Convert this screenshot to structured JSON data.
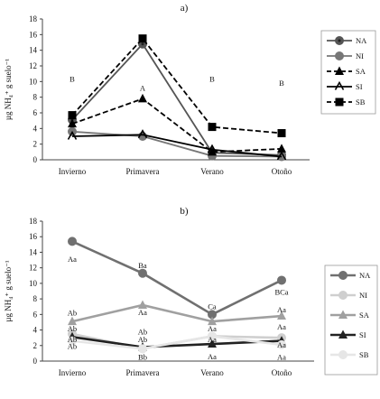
{
  "chart_data": [
    {
      "type": "line",
      "panel_label": "a)",
      "ylabel": "µg NH₄⁺ g suelo⁻¹",
      "categories": [
        "Invierno",
        "Primavera",
        "Verano",
        "Otoño"
      ],
      "ylim": [
        0,
        18
      ],
      "yticks": [
        0,
        2,
        4,
        6,
        8,
        10,
        12,
        14,
        16,
        18
      ],
      "grid": false,
      "legend_position": "right",
      "series": [
        {
          "name": "NA",
          "values": [
            5.1,
            14.8,
            0.9,
            0.6
          ],
          "color": "#555555",
          "dash": "solid",
          "marker": "circle-dot"
        },
        {
          "name": "NI",
          "values": [
            3.6,
            3.0,
            0.5,
            0.4
          ],
          "color": "#777777",
          "dash": "solid",
          "marker": "circle"
        },
        {
          "name": "SA",
          "values": [
            4.6,
            7.8,
            1.0,
            1.4
          ],
          "color": "#000000",
          "dash": "dashed",
          "marker": "triangle"
        },
        {
          "name": "SI",
          "values": [
            3.0,
            3.2,
            1.3,
            0.4
          ],
          "color": "#000000",
          "dash": "solid",
          "marker": "triangle-open"
        },
        {
          "name": "SB",
          "values": [
            5.7,
            15.5,
            4.2,
            3.4
          ],
          "color": "#000000",
          "dash": "dashed",
          "marker": "square"
        }
      ],
      "annotations": [
        {
          "text": "B",
          "x": "Invierno",
          "y": 10.3
        },
        {
          "text": "A",
          "x": "Primavera",
          "y": 9.2
        },
        {
          "text": "B",
          "x": "Verano",
          "y": 10.3
        },
        {
          "text": "B",
          "x": "Otoño",
          "y": 9.8
        }
      ]
    },
    {
      "type": "line",
      "panel_label": "b)",
      "ylabel": "µg NH₄⁺ g suelo⁻¹",
      "categories": [
        "Invierno",
        "Primavera",
        "Verano",
        "Otoño"
      ],
      "ylim": [
        0,
        18
      ],
      "yticks": [
        0,
        2,
        4,
        6,
        8,
        10,
        12,
        14,
        16,
        18
      ],
      "grid": false,
      "legend_position": "right",
      "series": [
        {
          "name": "NA",
          "values": [
            15.4,
            11.3,
            6.0,
            10.4
          ],
          "color": "#707070",
          "dash": "solid",
          "marker": "circle"
        },
        {
          "name": "NI",
          "values": [
            3.5,
            1.6,
            3.2,
            3.0
          ],
          "color": "#cfcfcf",
          "dash": "solid",
          "marker": "circle"
        },
        {
          "name": "SA",
          "values": [
            5.1,
            7.2,
            5.1,
            5.8
          ],
          "color": "#a0a0a0",
          "dash": "solid",
          "marker": "triangle"
        },
        {
          "name": "SI",
          "values": [
            3.1,
            1.8,
            2.2,
            2.6
          ],
          "color": "#222222",
          "dash": "solid",
          "marker": "triangle"
        },
        {
          "name": "SB",
          "values": [
            2.6,
            1.6,
            3.2,
            2.1
          ],
          "color": "#e6e6e6",
          "dash": "solid",
          "marker": "circle"
        }
      ],
      "annotations": [
        {
          "text": "Aa",
          "x": "Invierno",
          "y": 13.1
        },
        {
          "text": "Ba",
          "x": "Primavera",
          "y": 12.3
        },
        {
          "text": "Ca",
          "x": "Verano",
          "y": 7.0
        },
        {
          "text": "BCa",
          "x": "Otoño",
          "y": 8.9
        },
        {
          "text": "Ab",
          "x": "Invierno",
          "y": 6.2
        },
        {
          "text": "Aa",
          "x": "Primavera",
          "y": 6.3
        },
        {
          "text": "Aa",
          "x": "Verano",
          "y": 4.2
        },
        {
          "text": "Aa",
          "x": "Otoño",
          "y": 6.6
        },
        {
          "text": "Ab",
          "x": "Invierno",
          "y": 4.2
        },
        {
          "text": "Ab",
          "x": "Invierno",
          "y": 2.8
        },
        {
          "text": "Ab",
          "x": "Invierno",
          "y": 1.9
        },
        {
          "text": "Ab",
          "x": "Primavera",
          "y": 2.8
        },
        {
          "text": "Ab",
          "x": "Primavera",
          "y": 3.8
        },
        {
          "text": "Bb",
          "x": "Primavera",
          "y": 0.5
        },
        {
          "text": "Aa",
          "x": "Verano",
          "y": 2.8
        },
        {
          "text": "Aa",
          "x": "Verano",
          "y": 0.6
        },
        {
          "text": "Aa",
          "x": "Otoño",
          "y": 4.4
        },
        {
          "text": "Aa",
          "x": "Otoño",
          "y": 2.1
        },
        {
          "text": "Aa",
          "x": "Otoño",
          "y": 0.5
        }
      ]
    }
  ]
}
